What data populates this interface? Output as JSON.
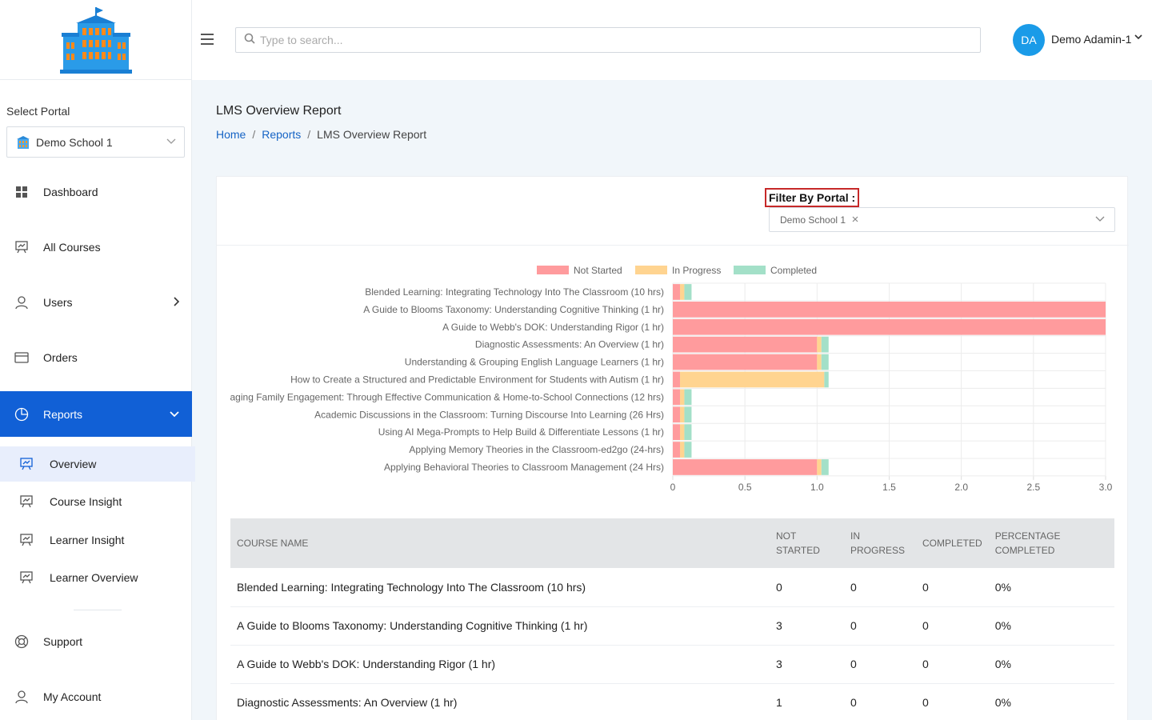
{
  "sidebar": {
    "portal_label": "Select Portal",
    "portal_value": "Demo School 1",
    "nav": [
      {
        "label": "Dashboard",
        "icon": "grid-icon"
      },
      {
        "label": "All Courses",
        "icon": "presentation-chart-icon"
      },
      {
        "label": "Users",
        "icon": "user-icon"
      },
      {
        "label": "Orders",
        "icon": "credit-card-icon"
      },
      {
        "label": "Reports",
        "icon": "pie-chart-icon"
      }
    ],
    "sub_nav": [
      {
        "label": "Overview"
      },
      {
        "label": "Course Insight"
      },
      {
        "label": "Learner Insight"
      },
      {
        "label": "Learner Overview"
      }
    ],
    "bottom_nav": [
      {
        "label": "Support",
        "icon": "lifebuoy-icon"
      },
      {
        "label": "My Account",
        "icon": "user-icon"
      }
    ]
  },
  "topbar": {
    "search_placeholder": "Type to search...",
    "avatar_initials": "DA",
    "user_name": "Demo Adamin-1"
  },
  "page": {
    "title": "LMS Overview Report",
    "breadcrumb": [
      "Home",
      "Reports",
      "LMS Overview Report"
    ]
  },
  "filter": {
    "label": "Filter By Portal :",
    "selected": "Demo School 1"
  },
  "colors": {
    "primary": "#1160d6",
    "not_started": "#ff9b9d",
    "in_progress": "#ffd490",
    "completed": "#a3e0c8"
  },
  "chart_data": {
    "type": "bar",
    "orientation": "horizontal",
    "stacked": true,
    "categories": [
      "Blended Learning: Integrating Technology Into The Classroom (10 hrs)",
      "A Guide to Blooms Taxonomy: Understanding Cognitive Thinking (1 hr)",
      "A Guide to Webb's DOK: Understanding Rigor (1 hr)",
      "Diagnostic Assessments: An Overview (1 hr)",
      "Understanding & Grouping English Language Learners (1 hr)",
      "How to Create a Structured and Predictable Environment for Students with Autism (1 hr)",
      "aging Family Engagement: Through Effective Communication & Home-to-School Connections (12 hrs)",
      "Academic Discussions in the Classroom: Turning Discourse Into Learning (26 Hrs)",
      "Using AI Mega-Prompts to Help Build & Differentiate Lessons (1 hr)",
      "Applying Memory Theories in the Classroom-ed2go (24-hrs)",
      "Applying Behavioral Theories to Classroom Management (24 Hrs)"
    ],
    "series": [
      {
        "name": "Not Started",
        "color": "#ff9b9d",
        "values": [
          0.05,
          3,
          3,
          1,
          1,
          0.05,
          0.05,
          0.05,
          0.05,
          0.05,
          1
        ]
      },
      {
        "name": "In Progress",
        "color": "#ffd490",
        "values": [
          0.03,
          0,
          0,
          0.03,
          0.03,
          1,
          0.03,
          0.03,
          0.03,
          0.03,
          0.03
        ]
      },
      {
        "name": "Completed",
        "color": "#a3e0c8",
        "values": [
          0.05,
          0,
          0,
          0.05,
          0.05,
          0.03,
          0.05,
          0.05,
          0.05,
          0.05,
          0.05
        ]
      }
    ],
    "xlim": [
      0,
      3
    ],
    "xticks": [
      "0",
      "0.5",
      "1.0",
      "1.5",
      "2.0",
      "2.5",
      "3.0"
    ],
    "legend": "top-center",
    "grid": true
  },
  "table": {
    "headers": [
      "COURSE NAME",
      "NOT STARTED",
      "IN PROGRESS",
      "COMPLETED",
      "PERCENTAGE COMPLETED"
    ],
    "rows": [
      [
        "Blended Learning: Integrating Technology Into The Classroom (10 hrs)",
        "0",
        "0",
        "0",
        "0%"
      ],
      [
        "A Guide to Blooms Taxonomy: Understanding Cognitive Thinking (1 hr)",
        "3",
        "0",
        "0",
        "0%"
      ],
      [
        "A Guide to Webb's DOK: Understanding Rigor (1 hr)",
        "3",
        "0",
        "0",
        "0%"
      ],
      [
        "Diagnostic Assessments: An Overview (1 hr)",
        "1",
        "0",
        "0",
        "0%"
      ]
    ]
  }
}
